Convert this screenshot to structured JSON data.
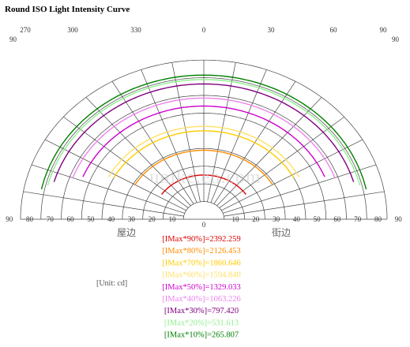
{
  "title": "Round ISO Light Intensity Curve",
  "unit_label": "[Unit: cd]",
  "left_side_label": "屋边",
  "right_side_label": "街边",
  "watermark": "unike.en.com",
  "chart_data": {
    "type": "polar-isocandela",
    "title": "Round ISO Light Intensity Curve",
    "top_azimuth_labels": [
      "270",
      "300",
      "330",
      "0",
      "30",
      "60",
      "90"
    ],
    "left_edge_label": "90",
    "right_edge_label": "90",
    "elevation_ticks_left": [
      "90",
      "80",
      "70",
      "60",
      "50",
      "40",
      "30",
      "20",
      "10"
    ],
    "elevation_ticks_right": [
      "90",
      "80",
      "70",
      "60",
      "50",
      "40",
      "30",
      "20",
      "10"
    ],
    "center_label": "0",
    "grid": true,
    "series": [
      {
        "name": "[IMax*90%]=2392.259",
        "color": "#dd0000",
        "elevation_deg": 25,
        "span_deg": 56
      },
      {
        "name": "[IMax*80%]=2126.453",
        "color": "#ff8c00",
        "elevation_deg": 39,
        "span_deg": 60
      },
      {
        "name": "[IMax*70%]=1860.646",
        "color": "#ffcc00",
        "elevation_deg": 50,
        "span_deg": 62
      },
      {
        "name": "[IMax*60%]=1594.840",
        "color": "#ffe066",
        "elevation_deg": 52.5,
        "span_deg": 63
      },
      {
        "name": "[IMax*50%]=1329.033",
        "color": "#cc00cc",
        "elevation_deg": 64,
        "span_deg": 68
      },
      {
        "name": "[IMax*40%]=1063.226",
        "color": "#ee82ee",
        "elevation_deg": 68.5,
        "span_deg": 70
      },
      {
        "name": "[IMax*30%]=797.420",
        "color": "#800080",
        "elevation_deg": 76.5,
        "span_deg": 74
      },
      {
        "name": "[IMax*20%]=531.613",
        "color": "#90ee90",
        "elevation_deg": 79,
        "span_deg": 76
      },
      {
        "name": "[IMax*10%]=265.807",
        "color": "#008000",
        "elevation_deg": 81.5,
        "span_deg": 78
      }
    ]
  }
}
